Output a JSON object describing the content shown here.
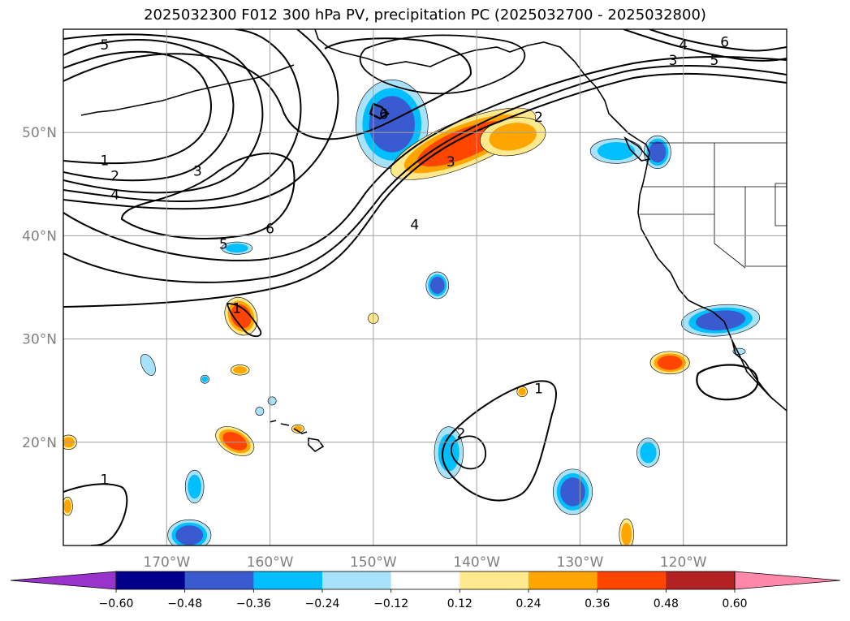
{
  "chart_data": {
    "type": "map",
    "title": "2025032300 F012 300 hPa PV, precipitation PC (2025032700 - 2025032800)",
    "map": {
      "lon_range": [
        -180,
        -110
      ],
      "lat_range": [
        10,
        60
      ],
      "lon_ticks": [
        -170,
        -160,
        -150,
        -140,
        -130,
        -120
      ],
      "lon_tick_labels": [
        "170°W",
        "160°W",
        "150°W",
        "140°W",
        "130°W",
        "120°W"
      ],
      "lat_ticks": [
        20,
        30,
        40,
        50
      ],
      "lat_tick_labels": [
        "20°N",
        "30°N",
        "40°N",
        "50°N"
      ],
      "grid": true
    },
    "colorbar": {
      "levels": [
        -0.6,
        -0.48,
        -0.36,
        -0.24,
        -0.12,
        0.12,
        0.24,
        0.36,
        0.48,
        0.6
      ],
      "tick_labels": [
        "−0.60",
        "−0.48",
        "−0.36",
        "−0.24",
        "−0.12",
        "0.12",
        "0.24",
        "0.36",
        "0.48",
        "0.60"
      ],
      "colors": [
        "#9933cc",
        "#00008b",
        "#3a5bcf",
        "#00bfff",
        "#a8e2fa",
        "#ffffff",
        "#ffe98c",
        "#ffa500",
        "#ff4500",
        "#b22222",
        "#ff88aa"
      ],
      "extend": "both"
    },
    "pv_contour_labels": [
      {
        "text": "5",
        "lon": -176,
        "lat": 58.5
      },
      {
        "text": "1",
        "lon": -176,
        "lat": 47.3
      },
      {
        "text": "2",
        "lon": -175,
        "lat": 45.8
      },
      {
        "text": "4",
        "lon": -175,
        "lat": 44
      },
      {
        "text": "3",
        "lon": -167,
        "lat": 46.3
      },
      {
        "text": "6",
        "lon": -149,
        "lat": 51.8
      },
      {
        "text": "6",
        "lon": -160,
        "lat": 40.7
      },
      {
        "text": "5",
        "lon": -164.5,
        "lat": 39.2
      },
      {
        "text": "4",
        "lon": -146,
        "lat": 41.1
      },
      {
        "text": "3",
        "lon": -142.5,
        "lat": 47.2
      },
      {
        "text": "2",
        "lon": -134,
        "lat": 51.5
      },
      {
        "text": "3",
        "lon": -121,
        "lat": 57
      },
      {
        "text": "4",
        "lon": -120,
        "lat": 58.5
      },
      {
        "text": "6",
        "lon": -116,
        "lat": 58.8
      },
      {
        "text": "5",
        "lon": -117,
        "lat": 57
      },
      {
        "text": "1",
        "lon": -163.2,
        "lat": 33
      },
      {
        "text": "1",
        "lon": -134,
        "lat": 25.2
      },
      {
        "text": "2",
        "lon": -141.5,
        "lat": 20.9
      },
      {
        "text": "1",
        "lon": -176,
        "lat": 16.4
      }
    ],
    "precip_features": [
      {
        "lon": -148.2,
        "lat": 50.8,
        "rx": 3.5,
        "ry": 4.3,
        "rot": 0,
        "levels": [
          4,
          3,
          2
        ]
      },
      {
        "lon": -141.3,
        "lat": 48.9,
        "rx": 7.5,
        "ry": 2.2,
        "rot": -22,
        "levels": [
          6,
          7,
          8
        ]
      },
      {
        "lon": -136.5,
        "lat": 49.6,
        "rx": 3.2,
        "ry": 1.8,
        "rot": -10,
        "levels": [
          6,
          7
        ]
      },
      {
        "lon": -126.5,
        "lat": 48.2,
        "rx": 2.5,
        "ry": 1.2,
        "rot": 0,
        "levels": [
          4,
          3
        ]
      },
      {
        "lon": -122.5,
        "lat": 48.1,
        "rx": 1.3,
        "ry": 1.6,
        "rot": 0,
        "levels": [
          4,
          3,
          2
        ]
      },
      {
        "lon": -162.8,
        "lat": 32.2,
        "rx": 1.5,
        "ry": 1.9,
        "rot": -25,
        "levels": [
          6,
          7,
          8
        ]
      },
      {
        "lon": -163.2,
        "lat": 38.8,
        "rx": 1.5,
        "ry": 0.6,
        "rot": 0,
        "levels": [
          4,
          3
        ]
      },
      {
        "lon": -143.8,
        "lat": 35.2,
        "rx": 1.1,
        "ry": 1.3,
        "rot": 0,
        "levels": [
          4,
          3,
          2
        ]
      },
      {
        "lon": -150,
        "lat": 32,
        "rx": 0.5,
        "ry": 0.5,
        "rot": 0,
        "levels": [
          6
        ]
      },
      {
        "lon": -116.4,
        "lat": 31.8,
        "rx": 3.8,
        "ry": 1.5,
        "rot": -5,
        "levels": [
          4,
          3,
          2
        ]
      },
      {
        "lon": -121.3,
        "lat": 27.7,
        "rx": 1.9,
        "ry": 1.1,
        "rot": 0,
        "levels": [
          6,
          7,
          8
        ]
      },
      {
        "lon": -171.8,
        "lat": 27.5,
        "rx": 0.6,
        "ry": 1.1,
        "rot": -25,
        "levels": [
          4
        ]
      },
      {
        "lon": -166.3,
        "lat": 26.1,
        "rx": 0.4,
        "ry": 0.4,
        "rot": 0,
        "levels": [
          4,
          3
        ]
      },
      {
        "lon": -162.9,
        "lat": 27.0,
        "rx": 0.9,
        "ry": 0.5,
        "rot": 0,
        "levels": [
          6,
          7
        ]
      },
      {
        "lon": -159.8,
        "lat": 24.0,
        "rx": 0.4,
        "ry": 0.4,
        "rot": 0,
        "levels": [
          4
        ]
      },
      {
        "lon": -161,
        "lat": 23.0,
        "rx": 0.4,
        "ry": 0.4,
        "rot": 0,
        "levels": [
          4
        ]
      },
      {
        "lon": -157.3,
        "lat": 21.3,
        "rx": 0.6,
        "ry": 0.4,
        "rot": 0,
        "levels": [
          6,
          7
        ]
      },
      {
        "lon": -163.4,
        "lat": 20.1,
        "rx": 2.0,
        "ry": 1.2,
        "rot": 28,
        "levels": [
          6,
          7,
          8
        ]
      },
      {
        "lon": -179.5,
        "lat": 20.0,
        "rx": 0.8,
        "ry": 0.7,
        "rot": 0,
        "levels": [
          6,
          7
        ]
      },
      {
        "lon": -179.6,
        "lat": 13.8,
        "rx": 0.5,
        "ry": 0.9,
        "rot": 0,
        "levels": [
          6,
          7
        ]
      },
      {
        "lon": -167.3,
        "lat": 15.7,
        "rx": 0.9,
        "ry": 1.6,
        "rot": 0,
        "levels": [
          4,
          3
        ]
      },
      {
        "lon": -167.8,
        "lat": 11.0,
        "rx": 2.1,
        "ry": 1.5,
        "rot": 0,
        "levels": [
          4,
          3,
          2
        ]
      },
      {
        "lon": -142.7,
        "lat": 19.0,
        "rx": 1.4,
        "ry": 2.5,
        "rot": 0,
        "levels": [
          4,
          3
        ]
      },
      {
        "lon": -130.7,
        "lat": 15.2,
        "rx": 1.9,
        "ry": 2.2,
        "rot": 0,
        "levels": [
          4,
          3,
          2
        ]
      },
      {
        "lon": -123.4,
        "lat": 19.0,
        "rx": 1.1,
        "ry": 1.4,
        "rot": 0,
        "levels": [
          4,
          3
        ]
      },
      {
        "lon": -114.6,
        "lat": 28.8,
        "rx": 0.6,
        "ry": 0.3,
        "rot": 0,
        "levels": [
          4
        ]
      },
      {
        "lon": -135.6,
        "lat": 24.9,
        "rx": 0.5,
        "ry": 0.5,
        "rot": 0,
        "levels": [
          6,
          7
        ]
      },
      {
        "lon": -125.5,
        "lat": 11.1,
        "rx": 0.7,
        "ry": 1.5,
        "rot": 0,
        "levels": [
          6,
          7
        ]
      }
    ]
  }
}
